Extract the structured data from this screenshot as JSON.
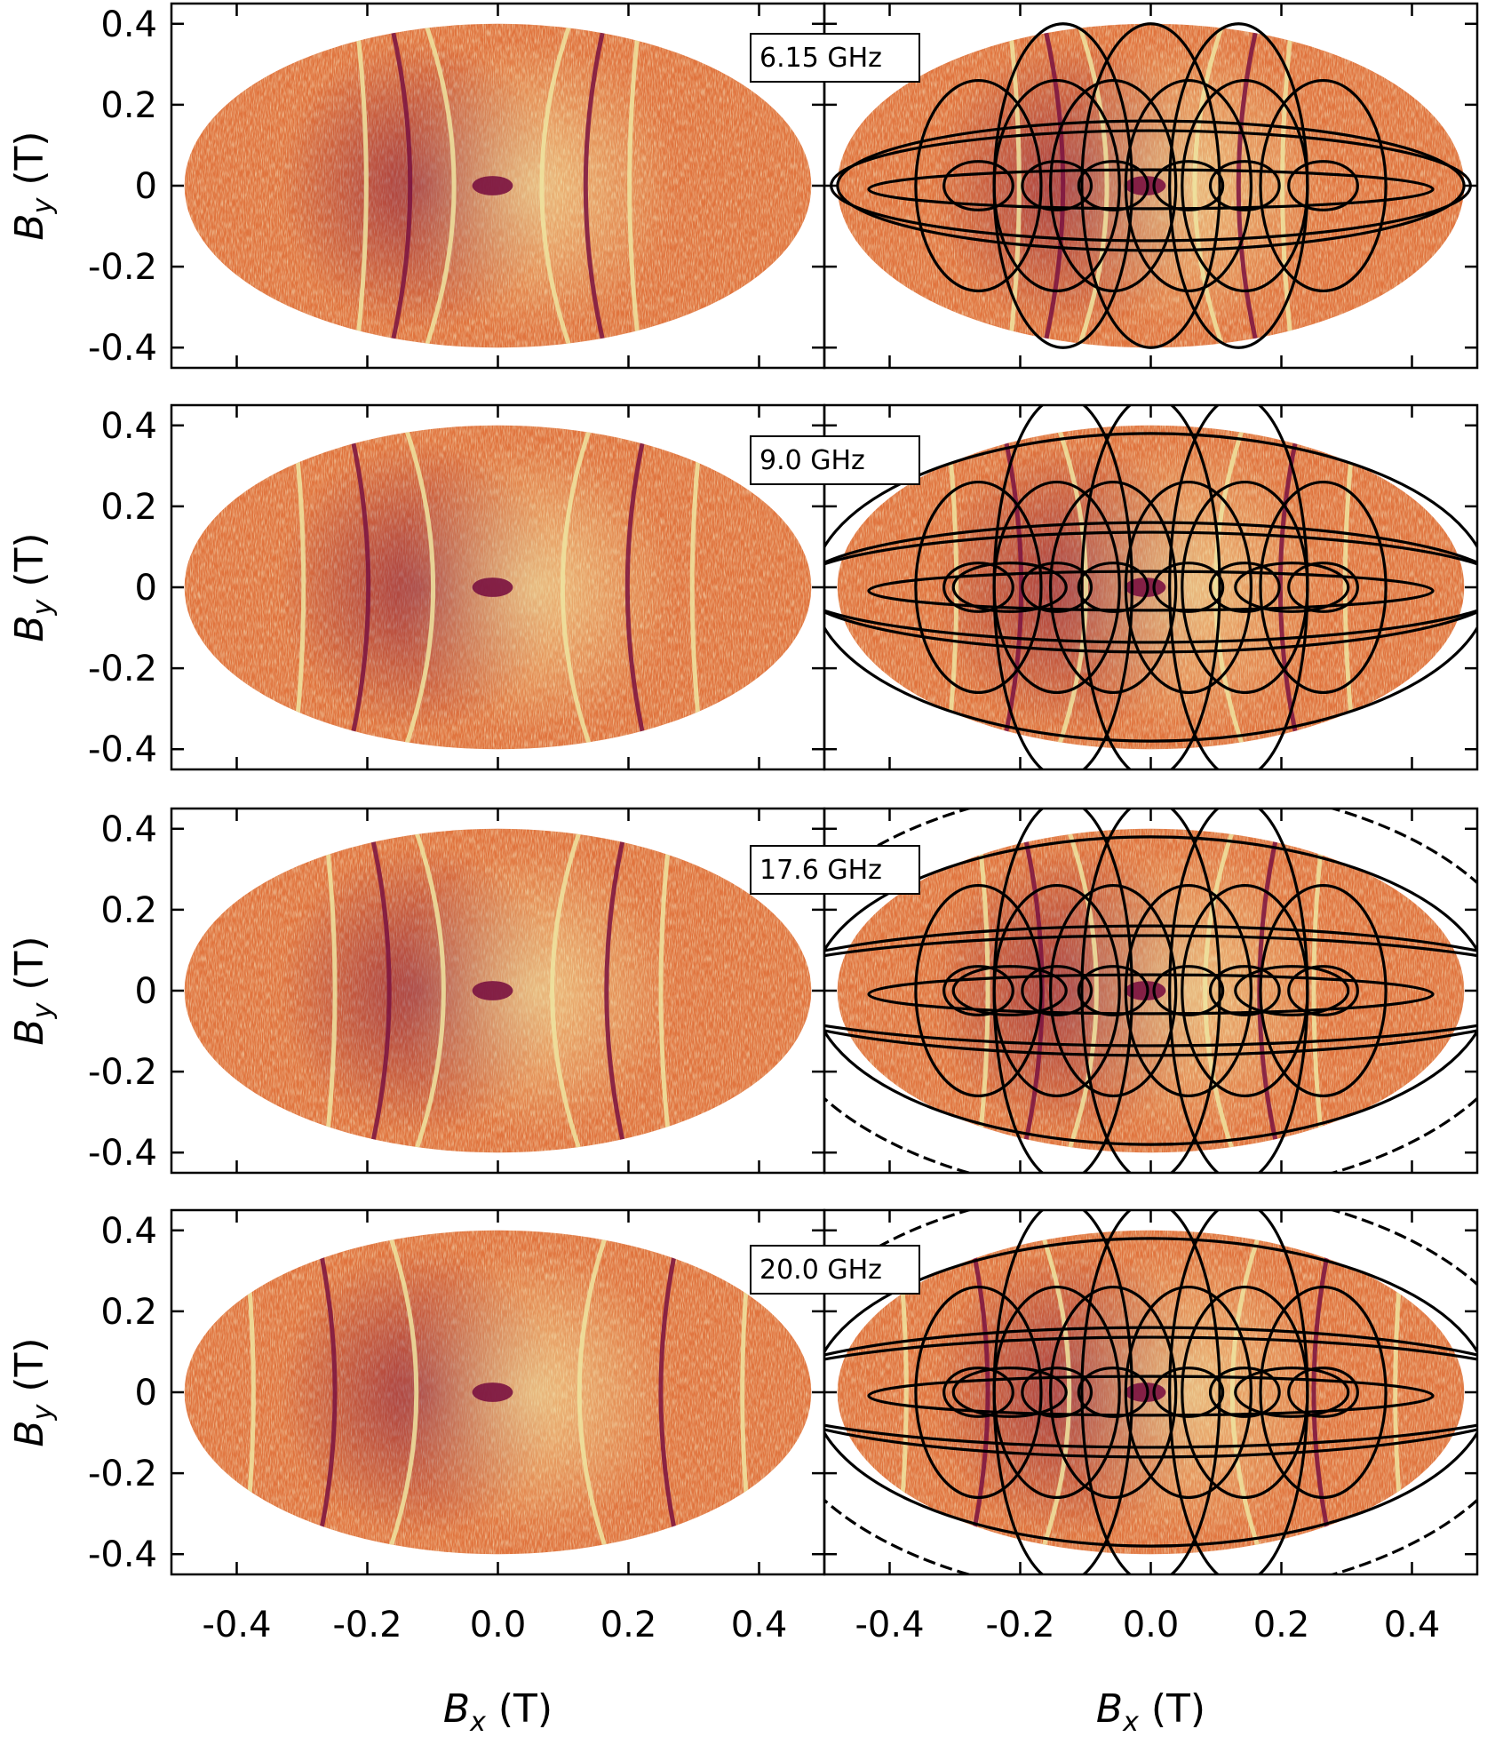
{
  "chart_data": [
    {
      "type": "heatmap",
      "row": 0,
      "col": 0,
      "frequency_label": "",
      "overlay": false,
      "xlim": [
        -0.5,
        0.5
      ],
      "ylim": [
        -0.45,
        0.45
      ],
      "xticks": [
        -0.4,
        -0.2,
        0.0,
        0.2,
        0.4
      ],
      "yticks": [
        0.4,
        0.2,
        0,
        -0.2,
        -0.4
      ],
      "ytick_labels": [
        "0.4",
        "0.2",
        "0",
        "-0.2",
        "-0.4"
      ],
      "ylabel": "By (T)",
      "xlabel": "",
      "field_radius_x": 0.48,
      "field_radius_y": 0.4
    },
    {
      "type": "heatmap",
      "row": 0,
      "col": 1,
      "frequency_label": "6.15 GHz",
      "overlay": true,
      "xlim": [
        -0.5,
        0.5
      ],
      "ylim": [
        -0.45,
        0.45
      ],
      "xticks": [
        -0.4,
        -0.2,
        0.0,
        0.2,
        0.4
      ],
      "yticks": [
        0.4,
        0.2,
        0,
        -0.2,
        -0.4
      ],
      "xlabel": "",
      "ylabel": "",
      "field_radius_x": 0.48,
      "field_radius_y": 0.4
    },
    {
      "type": "heatmap",
      "row": 1,
      "col": 0,
      "frequency_label": "",
      "overlay": false,
      "xlim": [
        -0.5,
        0.5
      ],
      "ylim": [
        -0.45,
        0.45
      ],
      "xticks": [
        -0.4,
        -0.2,
        0.0,
        0.2,
        0.4
      ],
      "yticks": [
        0.4,
        0.2,
        0,
        -0.2,
        -0.4
      ],
      "ytick_labels": [
        "0.4",
        "0.2",
        "0",
        "-0.2",
        "-0.4"
      ],
      "ylabel": "By (T)",
      "xlabel": "",
      "field_radius_x": 0.48,
      "field_radius_y": 0.4
    },
    {
      "type": "heatmap",
      "row": 1,
      "col": 1,
      "frequency_label": "9.0 GHz",
      "overlay": true,
      "xlim": [
        -0.5,
        0.5
      ],
      "ylim": [
        -0.45,
        0.45
      ],
      "xticks": [
        -0.4,
        -0.2,
        0.0,
        0.2,
        0.4
      ],
      "yticks": [
        0.4,
        0.2,
        0,
        -0.2,
        -0.4
      ],
      "xlabel": "",
      "ylabel": "",
      "field_radius_x": 0.48,
      "field_radius_y": 0.4
    },
    {
      "type": "heatmap",
      "row": 2,
      "col": 0,
      "frequency_label": "",
      "overlay": false,
      "xlim": [
        -0.5,
        0.5
      ],
      "ylim": [
        -0.45,
        0.45
      ],
      "xticks": [
        -0.4,
        -0.2,
        0.0,
        0.2,
        0.4
      ],
      "yticks": [
        0.4,
        0.2,
        0,
        -0.2,
        -0.4
      ],
      "ytick_labels": [
        "0.4",
        "0.2",
        "0",
        "-0.2",
        "-0.4"
      ],
      "ylabel": "By (T)",
      "xlabel": "",
      "field_radius_x": 0.48,
      "field_radius_y": 0.4
    },
    {
      "type": "heatmap",
      "row": 2,
      "col": 1,
      "frequency_label": "17.6 GHz",
      "overlay": true,
      "xlim": [
        -0.5,
        0.5
      ],
      "ylim": [
        -0.45,
        0.45
      ],
      "xticks": [
        -0.4,
        -0.2,
        0.0,
        0.2,
        0.4
      ],
      "yticks": [
        0.4,
        0.2,
        0,
        -0.2,
        -0.4
      ],
      "xlabel": "",
      "ylabel": "",
      "field_radius_x": 0.48,
      "field_radius_y": 0.4
    },
    {
      "type": "heatmap",
      "row": 3,
      "col": 0,
      "frequency_label": "",
      "overlay": false,
      "xlim": [
        -0.5,
        0.5
      ],
      "ylim": [
        -0.45,
        0.45
      ],
      "xticks": [
        -0.4,
        -0.2,
        0.0,
        0.2,
        0.4
      ],
      "xtick_labels": [
        "-0.4",
        "-0.2",
        "0.0",
        "0.2",
        "0.4"
      ],
      "yticks": [
        0.4,
        0.2,
        0,
        -0.2,
        -0.4
      ],
      "ytick_labels": [
        "0.4",
        "0.2",
        "0",
        "-0.2",
        "-0.4"
      ],
      "ylabel": "By (T)",
      "xlabel": "Bx (T)",
      "field_radius_x": 0.48,
      "field_radius_y": 0.4
    },
    {
      "type": "heatmap",
      "row": 3,
      "col": 1,
      "frequency_label": "20.0 GHz",
      "overlay": true,
      "xlim": [
        -0.5,
        0.5
      ],
      "ylim": [
        -0.45,
        0.45
      ],
      "xticks": [
        -0.4,
        -0.2,
        0.0,
        0.2,
        0.4
      ],
      "xtick_labels": [
        "-0.4",
        "-0.2",
        "0.0",
        "0.2",
        "0.4"
      ],
      "yticks": [
        0.4,
        0.2,
        0,
        -0.2,
        -0.4
      ],
      "ylabel": "",
      "xlabel": "Bx (T)",
      "field_radius_x": 0.48,
      "field_radius_y": 0.4
    }
  ],
  "colors": {
    "field_base": "#e0743e",
    "field_light": "#eee4a0",
    "field_dark": "#7a1240",
    "overlay_curves": "#000000",
    "frame": "#000000",
    "background": "#ffffff"
  },
  "axis_symbols": {
    "y_main": "B",
    "y_sub": "y",
    "x_main": "B",
    "x_sub": "x",
    "unit": "(T)"
  }
}
